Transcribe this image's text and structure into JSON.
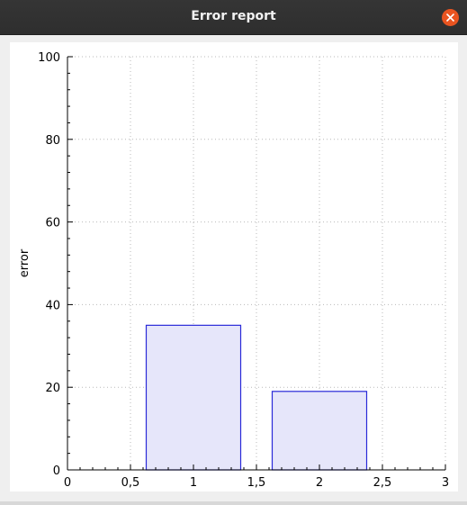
{
  "window": {
    "title": "Error report",
    "close_icon": "close-icon"
  },
  "colors": {
    "titlebar": "#303030",
    "close_button": "#e95420",
    "bar_fill": "#e6e6fa",
    "bar_stroke": "#2a2ad8"
  },
  "chart_data": {
    "type": "bar",
    "ylabel": "error",
    "xlabel": "",
    "xlim": [
      0,
      3
    ],
    "ylim": [
      0,
      100
    ],
    "x_ticks": [
      "0",
      "0,5",
      "1",
      "1,5",
      "2",
      "2,5",
      "3"
    ],
    "y_ticks": [
      "0",
      "20",
      "40",
      "60",
      "80",
      "100"
    ],
    "grid": true,
    "bars": [
      {
        "x": 1,
        "width": 0.75,
        "value": 35
      },
      {
        "x": 2,
        "width": 0.75,
        "value": 19
      }
    ]
  }
}
